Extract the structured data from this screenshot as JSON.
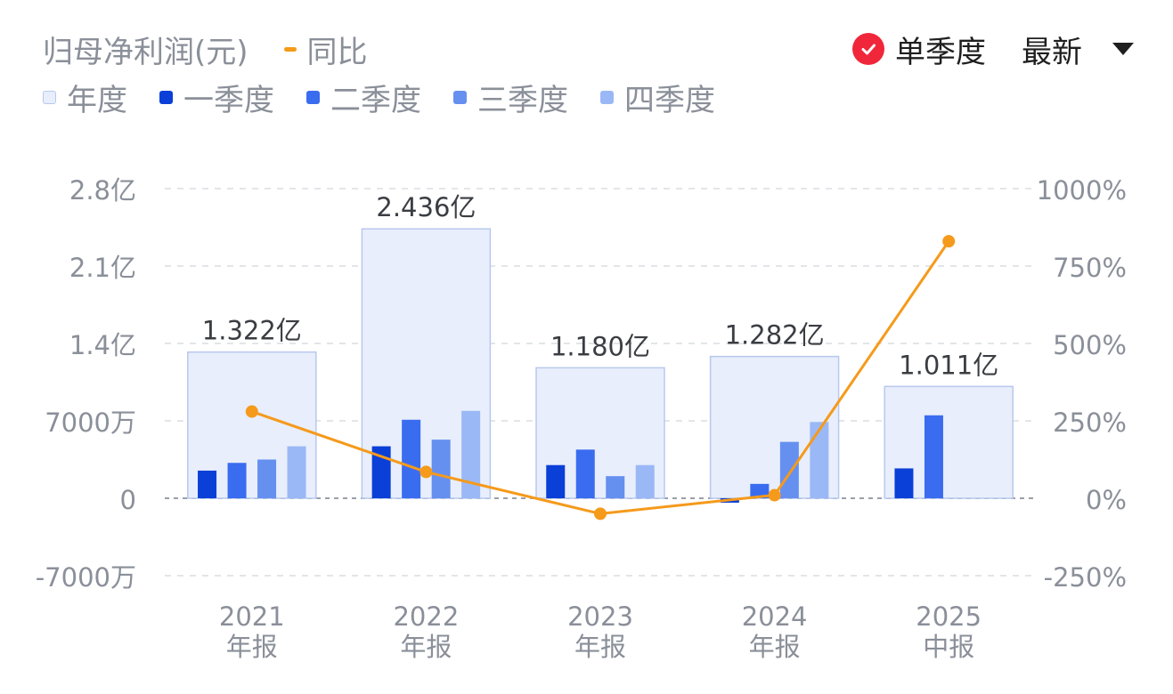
{
  "header": {
    "title": "归母净利润(元)",
    "yoy_label": "同比"
  },
  "controls": {
    "single_quarter_label": "单季度",
    "period_label": "最新"
  },
  "legend": [
    {
      "label": "年度",
      "color": "#e8eefb",
      "border": "#b8c8ee"
    },
    {
      "label": "一季度",
      "color": "#0a3fd8"
    },
    {
      "label": "二季度",
      "color": "#3a6cf0"
    },
    {
      "label": "三季度",
      "color": "#6590f0"
    },
    {
      "label": "四季度",
      "color": "#9bb8f6"
    }
  ],
  "colors": {
    "accent_orange": "#f59a1b",
    "check_red": "#f0273a"
  },
  "chart_data": {
    "type": "bar",
    "categories": [
      {
        "year": "2021",
        "kind": "年报"
      },
      {
        "year": "2022",
        "kind": "年报"
      },
      {
        "year": "2023",
        "kind": "年报"
      },
      {
        "year": "2024",
        "kind": "年报"
      },
      {
        "year": "2025",
        "kind": "中报"
      }
    ],
    "annual": {
      "values": [
        13220,
        24360,
        11800,
        12820,
        10110
      ],
      "labels": [
        "1.322亿",
        "2.436亿",
        "1.180亿",
        "1.282亿",
        "1.011亿"
      ]
    },
    "quarterly_unit": "万元",
    "series": [
      {
        "name": "一季度",
        "values": [
          2500,
          4700,
          3000,
          -400,
          2700
        ]
      },
      {
        "name": "二季度",
        "values": [
          3200,
          7100,
          4400,
          1300,
          7500
        ]
      },
      {
        "name": "三季度",
        "values": [
          3500,
          5300,
          2000,
          5100,
          null
        ]
      },
      {
        "name": "四季度",
        "values": [
          4700,
          7900,
          3000,
          6900,
          null
        ]
      }
    ],
    "yoy": {
      "name": "同比",
      "unit": "%",
      "values": [
        280,
        85,
        -50,
        10,
        830
      ]
    },
    "y_left": {
      "min": -7000,
      "max": 28000,
      "unit": "万元",
      "ticks": [
        {
          "value": 28000,
          "label": "2.8亿"
        },
        {
          "value": 21000,
          "label": "2.1亿"
        },
        {
          "value": 14000,
          "label": "1.4亿"
        },
        {
          "value": 7000,
          "label": "7000万"
        },
        {
          "value": 0,
          "label": "0"
        },
        {
          "value": -7000,
          "label": "-7000万"
        }
      ]
    },
    "y_right": {
      "min": -250,
      "max": 1000,
      "ticks": [
        {
          "value": 1000,
          "label": "1000%"
        },
        {
          "value": 750,
          "label": "750%"
        },
        {
          "value": 500,
          "label": "500%"
        },
        {
          "value": 250,
          "label": "250%"
        },
        {
          "value": 0,
          "label": "0%"
        },
        {
          "value": -250,
          "label": "-250%"
        }
      ]
    },
    "grid": true
  }
}
